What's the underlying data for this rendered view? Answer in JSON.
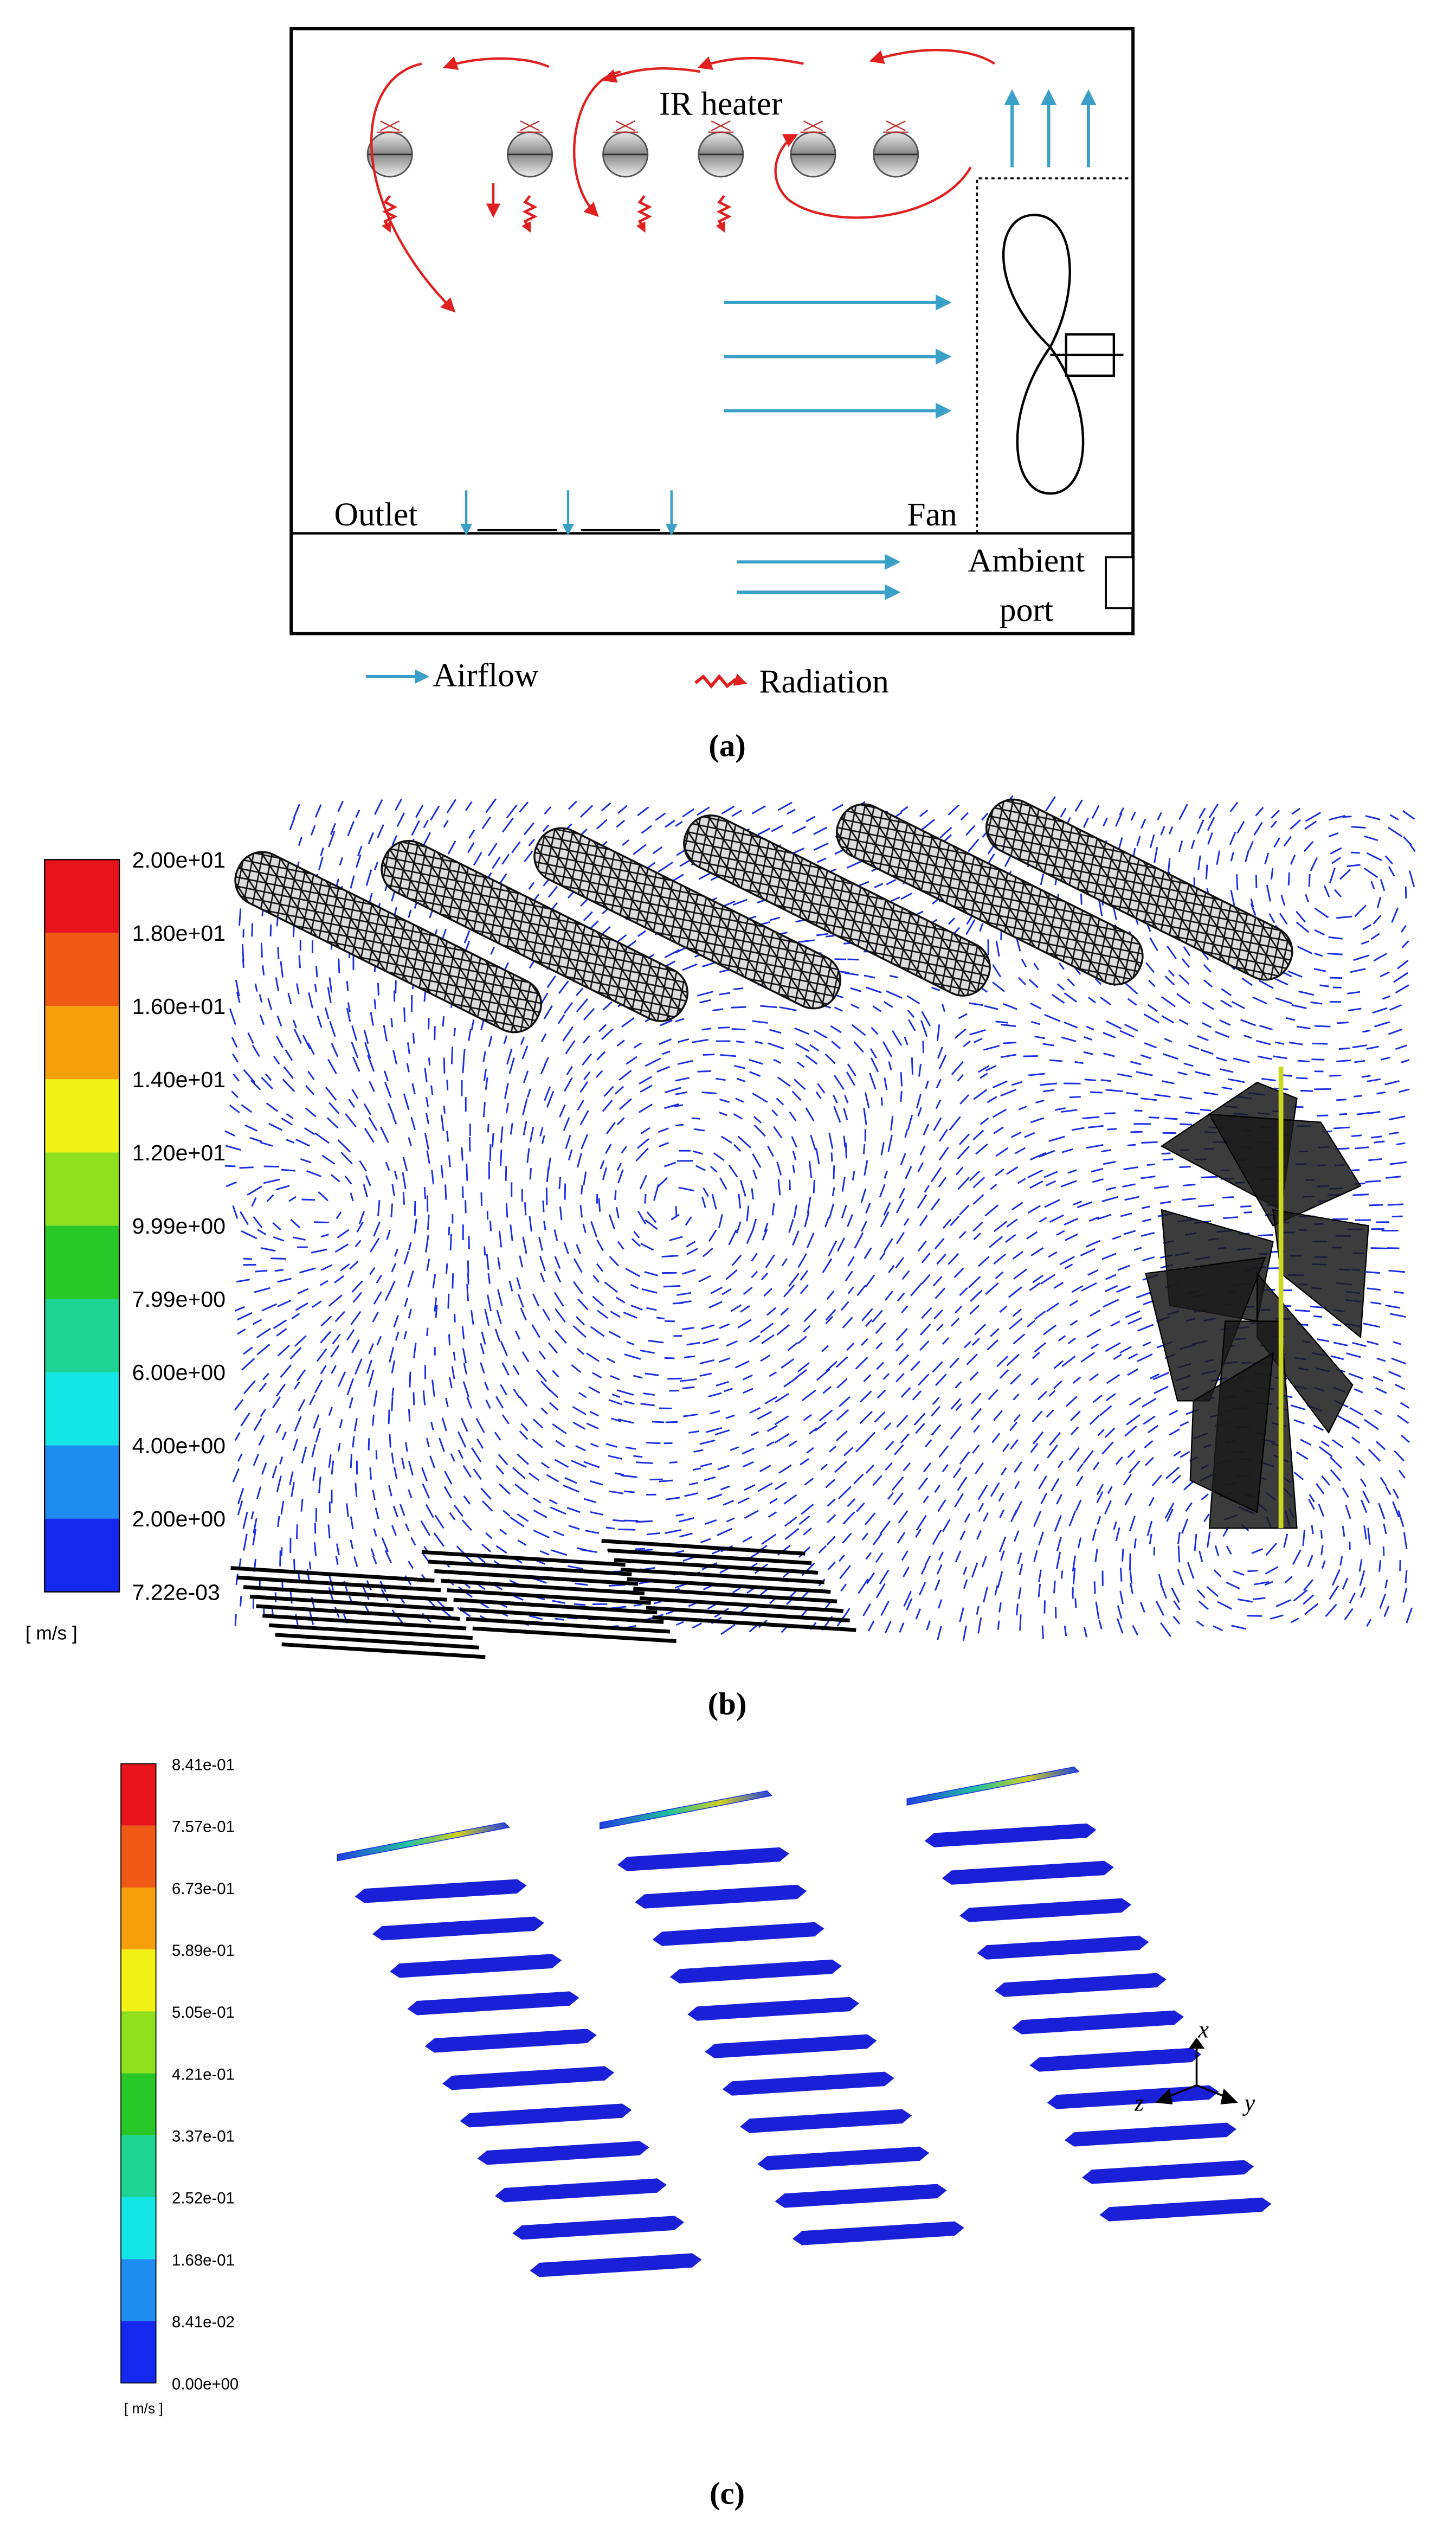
{
  "panel_a": {
    "heater_label": "IR heater",
    "outlet_label": "Outlet",
    "fan_label": "Fan",
    "ambient_label": [
      "Ambient",
      "port"
    ],
    "legend": {
      "airflow": "Airflow",
      "radiation": "Radiation"
    },
    "caption": "(a)"
  },
  "panel_b": {
    "colorbar_labels": [
      "2.00e+01",
      "1.80e+01",
      "1.60e+01",
      "1.40e+01",
      "1.20e+01",
      "9.99e+00",
      "7.99e+00",
      "6.00e+00",
      "4.00e+00",
      "2.00e+00",
      "7.22e-03"
    ],
    "unit": "[ m/s ]",
    "caption": "(b)"
  },
  "panel_c": {
    "colorbar_labels": [
      "8.41e-01",
      "7.57e-01",
      "6.73e-01",
      "5.89e-01",
      "5.05e-01",
      "4.21e-01",
      "3.37e-01",
      "2.52e-01",
      "1.68e-01",
      "8.41e-02",
      "0.00e+00"
    ],
    "unit": "[ m/s ]",
    "axes": {
      "x": "x",
      "y": "y",
      "z": "z"
    },
    "caption": "(c)"
  }
}
